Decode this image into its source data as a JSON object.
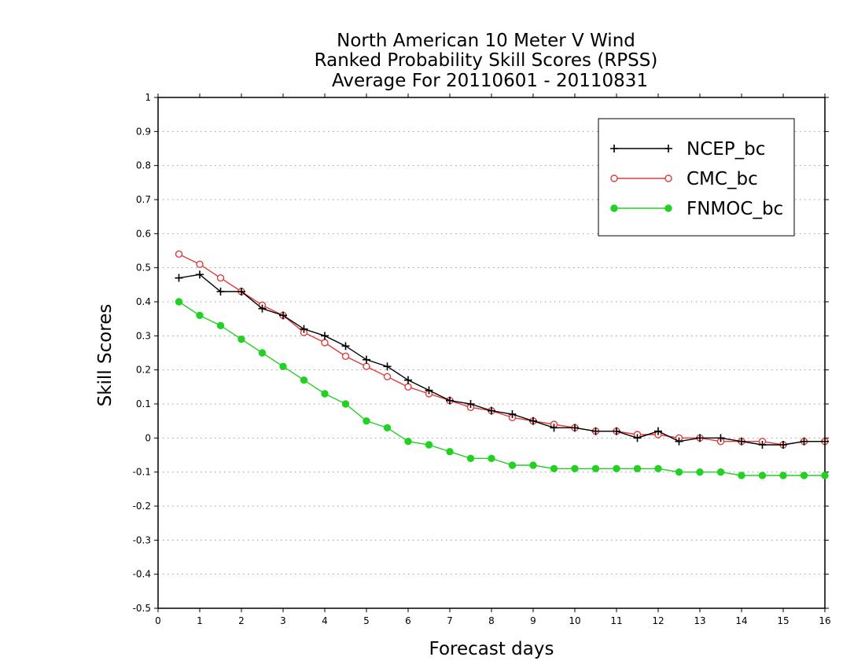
{
  "chart_data": {
    "type": "line",
    "title_lines": [
      "North American 10 Meter V Wind",
      "Ranked Probability Skill Scores (RPSS)",
      "Average For 20110601 - 20110831"
    ],
    "xlabel": "Forecast days",
    "ylabel": "Skill Scores",
    "xlim": [
      0,
      16
    ],
    "ylim": [
      -0.5,
      1
    ],
    "xticks": [
      "0",
      "1",
      "2",
      "3",
      "4",
      "5",
      "6",
      "7",
      "8",
      "9",
      "10",
      "11",
      "12",
      "13",
      "14",
      "15",
      "16"
    ],
    "yticks": [
      "-0.5",
      "-0.4",
      "-0.3",
      "-0.2",
      "-0.1",
      "0",
      "0.1",
      "0.2",
      "0.3",
      "0.4",
      "0.5",
      "0.6",
      "0.7",
      "0.8",
      "0.9",
      "1"
    ],
    "grid": "horizontal dotted",
    "legend_position": "top-right",
    "x": [
      0.5,
      1,
      1.5,
      2,
      2.5,
      3,
      3.5,
      4,
      4.5,
      5,
      5.5,
      6,
      6.5,
      7,
      7.5,
      8,
      8.5,
      9,
      9.5,
      10,
      10.5,
      11,
      11.5,
      12,
      12.5,
      13,
      13.5,
      14,
      14.5,
      15,
      15.5,
      16
    ],
    "series": [
      {
        "name": "NCEP_bc",
        "color": "#000000",
        "marker": "plus",
        "values": [
          0.47,
          0.48,
          0.43,
          0.43,
          0.38,
          0.36,
          0.32,
          0.3,
          0.27,
          0.23,
          0.21,
          0.17,
          0.14,
          0.11,
          0.1,
          0.08,
          0.07,
          0.05,
          0.03,
          0.03,
          0.02,
          0.02,
          0.0,
          0.02,
          -0.01,
          0.0,
          0.0,
          -0.01,
          -0.02,
          -0.02,
          -0.01,
          -0.01
        ]
      },
      {
        "name": "CMC_bc",
        "color": "#e03c3c",
        "marker": "open-circle",
        "values": [
          0.54,
          0.51,
          0.47,
          0.43,
          0.39,
          0.36,
          0.31,
          0.28,
          0.24,
          0.21,
          0.18,
          0.15,
          0.13,
          0.11,
          0.09,
          0.08,
          0.06,
          0.05,
          0.04,
          0.03,
          0.02,
          0.02,
          0.01,
          0.01,
          0.0,
          0.0,
          -0.01,
          -0.01,
          -0.01,
          -0.02,
          -0.01,
          -0.01
        ]
      },
      {
        "name": "FNMOC_bc",
        "color": "#22d122",
        "marker": "filled-circle",
        "values": [
          0.4,
          0.36,
          0.33,
          0.29,
          0.25,
          0.21,
          0.17,
          0.13,
          0.1,
          0.05,
          0.03,
          -0.01,
          -0.02,
          -0.04,
          -0.06,
          -0.06,
          -0.08,
          -0.08,
          -0.09,
          -0.09,
          -0.09,
          -0.09,
          -0.09,
          -0.09,
          -0.1,
          -0.1,
          -0.1,
          -0.11,
          -0.11,
          -0.11,
          -0.11,
          -0.11
        ]
      }
    ]
  }
}
